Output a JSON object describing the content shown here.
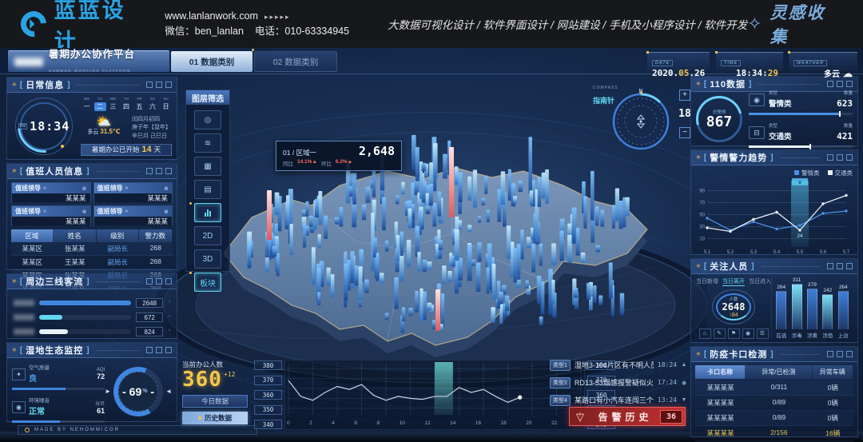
{
  "site_header": {
    "logo": "蓝蓝设计",
    "url": "www.lanlanwork.com",
    "arrows": "▸▸▸▸▸",
    "wechat": "微信：ben_lanlan",
    "phone": "电话：010-63334945",
    "services": "大数据可视化设计 / 软件界面设计 / 网站建设 / 手机及小程序设计 / 软件开发",
    "collect": "灵感收集"
  },
  "topbar": {
    "title": "暑期办公协作平台",
    "subtitle": "SUMMER WORKING PLATFORM",
    "tabs": [
      {
        "label": "01 数据类别"
      },
      {
        "label": "02 数据类别"
      }
    ],
    "date": {
      "label": "DATE",
      "main": "2020.",
      "hl": "05",
      "rest": ".26"
    },
    "time": {
      "label": "TIME",
      "main": "18:34:",
      "hl": "29"
    },
    "weather": {
      "label": "WEATHER",
      "value": "多云"
    }
  },
  "daily": {
    "title": "日常信息",
    "clock_pm": "PM",
    "clock_time": "18:34",
    "week_en": [
      "MO",
      "TU",
      "WE",
      "TH",
      "FR",
      "SA",
      "SU"
    ],
    "week_cn": [
      "一",
      "二",
      "三",
      "四",
      "五",
      "六",
      "日"
    ],
    "active_day_index": 1,
    "weather_text": "多云",
    "temp": "31.5℃",
    "lunar1": "闰四月初四",
    "lunar2": "庚子年【鼠年】",
    "lunar3": "辛巳月 己巳日",
    "notice_prefix": "暑期办公已开始",
    "notice_days": "14",
    "notice_suffix": "天"
  },
  "duty": {
    "title": "值班人员信息",
    "card_chevron": "»",
    "card_close": "⊗",
    "cards": [
      {
        "role": "值班领导",
        "name": "某某某"
      },
      {
        "role": "值班领导",
        "name": "某某某"
      },
      {
        "role": "值班领导",
        "name": "某某某"
      },
      {
        "role": "值班领导",
        "name": "某某某"
      }
    ],
    "headers": [
      "区域",
      "姓名",
      "级别",
      "警力数"
    ],
    "rows": [
      [
        "某某区",
        "张某某",
        "副局长",
        "268"
      ],
      [
        "某某区",
        "王某某",
        "副局长",
        "268"
      ],
      [
        "某某区",
        "张某某",
        "副局长",
        "268"
      ],
      [
        "某某区",
        "王某某",
        "副局长",
        "268"
      ],
      [
        "某某区",
        "张某某",
        "副局长",
        "268"
      ]
    ]
  },
  "flow": {
    "title": "周边三线客流"
  },
  "eco": {
    "title": "湿地生态监控",
    "air_label": "空气质量",
    "air_status": "良",
    "air_unit": "AQI",
    "air_value": "72",
    "noise_label": "环境噪音",
    "noise_status": "正常",
    "noise_unit": "分贝",
    "noise_value": "61",
    "gauge_value": "69",
    "gauge_unit": "%"
  },
  "made_by": "MADE BY NEHOMMICOR",
  "layers": {
    "title": "图层筛选",
    "buttons": [
      {
        "icon": "camera",
        "glyph": "◎"
      },
      {
        "icon": "signal",
        "glyph": "≋"
      },
      {
        "icon": "grid",
        "glyph": "▦"
      },
      {
        "icon": "list",
        "glyph": "▤"
      },
      {
        "icon": "chart",
        "active": true
      },
      {
        "icon": "mode-2d",
        "label": "2D"
      },
      {
        "icon": "mode-3d",
        "label": "3D"
      },
      {
        "icon": "blocks",
        "label": "板块",
        "active": true
      }
    ]
  },
  "map": {
    "tooltip_title": "01 / 区域一",
    "tooltip_value": "2,648",
    "yoy_label": "同比",
    "yoy": "14.1%",
    "yoy_arrow": "▲",
    "mom_label": "环比",
    "mom": "6.2%",
    "mom_arrow": "▲"
  },
  "compass": {
    "label_en": "COMPASS",
    "label_cn": "指南针",
    "north": "N",
    "zoom_in": "+",
    "zoom_out": "−",
    "level": "18"
  },
  "data110": {
    "title": "110数据",
    "gauge_label": "总警情",
    "gauge_value": "867",
    "rows": [
      {
        "type_label": "类型",
        "type": "警情类",
        "count_label": "数量",
        "count": "623"
      },
      {
        "type_label": "类型",
        "type": "交通类",
        "count_label": "数量",
        "count": "421"
      }
    ]
  },
  "trend": {
    "title": "警情警力趋势"
  },
  "focus": {
    "title": "关注人员",
    "tabs": [
      {
        "label": "当日新增"
      },
      {
        "label": "当日离开",
        "active": true
      },
      {
        "label": "当日进入"
      }
    ],
    "ring_label": "人数",
    "ring_value": "2648",
    "ring_delta": "↑84",
    "icons": [
      "⌂",
      "✎",
      "⚑",
      "◉",
      "☰"
    ]
  },
  "checkpoint": {
    "title": "防疫卡口检测",
    "headers": [
      "卡口名称",
      "异常/已检测",
      "异常车辆"
    ],
    "rows": [
      {
        "name": "某某某某",
        "ratio": "0/311",
        "cars": "0辆",
        "alert": false
      },
      {
        "name": "某某某某",
        "ratio": "0/89",
        "cars": "0辆",
        "alert": false
      },
      {
        "name": "某某某某",
        "ratio": "0/89",
        "cars": "0辆",
        "alert": false
      },
      {
        "name": "某某某某",
        "ratio": "2/156",
        "cars": "16辆",
        "alert": true
      },
      {
        "name": "某某某某",
        "ratio": "2/268",
        "cars": "16辆",
        "alert": true
      }
    ]
  },
  "office": {
    "label": "当前办公人数",
    "value": "360",
    "delta": "+12",
    "btn_today": "今日数据",
    "btn_history": "历史数据"
  },
  "alerts": {
    "items": [
      {
        "tag": "类型1",
        "text": "湿地3-104片区有不明人员闯入",
        "time": "18:24",
        "icon": "▲"
      },
      {
        "tag": "类型2",
        "text": "RD13-53烟感报警疑似火灾",
        "time": "17:24",
        "icon": "◉"
      },
      {
        "tag": "类型4",
        "text": "某路口有小汽车连闯三个红灯",
        "time": "13:24",
        "icon": "▼"
      }
    ],
    "history_label": "告警历史",
    "history_count": "36"
  },
  "chart_data": [
    {
      "id": "trend",
      "type": "line",
      "title": "警情警力趋势",
      "categories": [
        "5.1",
        "5.2",
        "5.3",
        "5.4",
        "5.5",
        "5.6",
        "5.7"
      ],
      "series": [
        {
          "name": "警情类",
          "color": "#4a90e8",
          "values": [
            44,
            24,
            38,
            26,
            32,
            52,
            56
          ]
        },
        {
          "name": "交通类",
          "color": "#e8eef6",
          "values": [
            28,
            22,
            42,
            54,
            24,
            68,
            82
          ]
        }
      ],
      "yticks": [
        90,
        70,
        50,
        30,
        10
      ],
      "ylim": [
        0,
        100
      ],
      "highlight_index": 4,
      "annotation": {
        "index": 4,
        "series": "交通类",
        "value": "24"
      },
      "legend_position": "top-right",
      "grid": true
    },
    {
      "id": "occupancy",
      "type": "line",
      "title": "当前办公人数-历史数据",
      "x": [
        0,
        1,
        2,
        3,
        4,
        5,
        6,
        7,
        8,
        9,
        10,
        11,
        12,
        13,
        14,
        15,
        16,
        17,
        18,
        19
      ],
      "values": [
        368,
        352,
        348,
        356,
        362,
        359,
        364,
        353,
        348,
        352,
        350,
        349,
        352,
        352,
        361,
        356,
        359,
        352,
        346,
        351
      ],
      "xticks": [
        0,
        2,
        4,
        6,
        8,
        10,
        12,
        14,
        16,
        18,
        20,
        22,
        24
      ],
      "yticks": [
        380,
        370,
        360,
        350,
        340
      ],
      "ylim": [
        335,
        385
      ],
      "xlim": [
        0,
        24
      ],
      "highlight_band": [
        12,
        13.5
      ],
      "line_color": "#c8d4e4",
      "grid": true
    },
    {
      "id": "focus_bars",
      "type": "bar",
      "categories": [
        "在逃",
        "涉毒",
        "涉黄",
        "涉恐",
        "上访"
      ],
      "values": [
        264,
        311,
        279,
        242,
        264
      ],
      "colors": [
        "#3f7fd9",
        "#7ce0f5",
        "#3f7fd9",
        "#7ce0f5",
        "#3f7fd9"
      ],
      "ylim": [
        0,
        340
      ]
    },
    {
      "id": "flow_bars",
      "type": "bar",
      "categories": [
        "线路一",
        "线路二",
        "线路三"
      ],
      "values": [
        2648,
        672,
        824
      ],
      "colors": [
        "#3f86e0",
        "#62d8f2",
        "#e8f2fb"
      ]
    },
    {
      "id": "data110_bars",
      "type": "bar",
      "categories": [
        "警情类",
        "交通类"
      ],
      "values": [
        623,
        421
      ],
      "colors": [
        "#4a90e8",
        "#eef4fb"
      ]
    }
  ]
}
